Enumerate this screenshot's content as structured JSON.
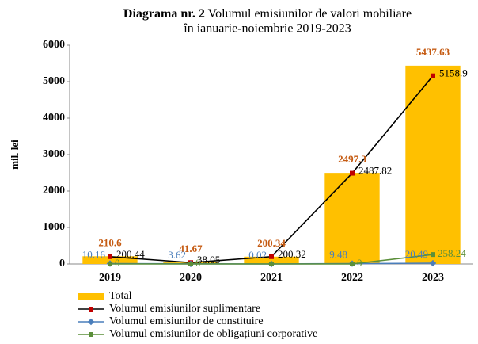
{
  "chart_data": {
    "type": "bar",
    "title": {
      "label": "Diagrama nr. 2",
      "text": [
        "Volumul emisiunilor de valori mobiliare",
        "în ianuarie-noiembrie 2019-2023"
      ]
    },
    "ylabel": "mil. lei",
    "categories": [
      "2019",
      "2020",
      "2021",
      "2022",
      "2023"
    ],
    "ylim": [
      0,
      6000
    ],
    "yticks": [
      0,
      1000,
      2000,
      3000,
      4000,
      5000,
      6000
    ],
    "series": [
      {
        "name": "Total",
        "type": "bar",
        "color": "#ffc000",
        "label_color": "#c55a11",
        "values": [
          210.6,
          41.67,
          200.34,
          2497.3,
          5437.63
        ]
      },
      {
        "name": "Volumul emisiunilor suplimentare",
        "type": "line",
        "color": "#000000",
        "marker_color": "#c00000",
        "label_color": "#000000",
        "values": [
          200.44,
          38.05,
          200.32,
          2487.82,
          5158.9
        ]
      },
      {
        "name": "Volumul emisiunilor de constituire",
        "type": "line",
        "color": "#4a7ebb",
        "marker_color": "#4a7ebb",
        "label_color": "#4a7ebb",
        "values": [
          10.16,
          3.62,
          0.02,
          9.48,
          20.49
        ]
      },
      {
        "name": "Volumul emisiunilor de obligațiuni corporative",
        "type": "line",
        "color": "#5b8f3a",
        "marker_color": "#5b8f3a",
        "label_color": "#5b8f3a",
        "values": [
          0,
          0,
          0,
          0,
          258.24
        ],
        "value_labels": [
          "0",
          "0",
          null,
          "0",
          "258.24"
        ]
      }
    ]
  }
}
